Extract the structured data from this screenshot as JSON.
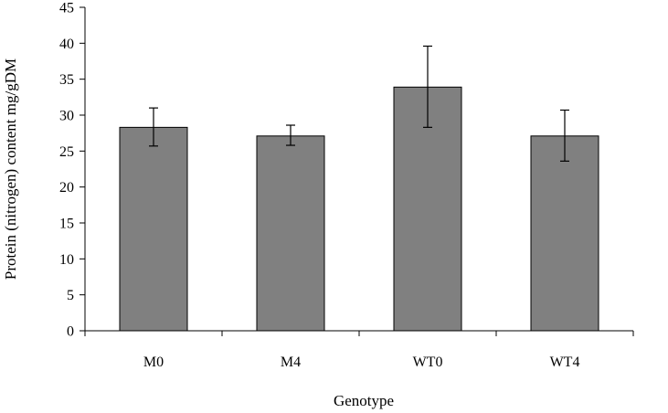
{
  "chart_data": {
    "type": "bar",
    "title": "",
    "xlabel": "Genotype",
    "ylabel": "Protein (nitrogen) content  mg/gDM",
    "categories": [
      "M0",
      "M4",
      "WT0",
      "WT4"
    ],
    "values": [
      28.3,
      27.1,
      33.9,
      27.1
    ],
    "error_low": [
      25.7,
      25.8,
      28.3,
      23.6
    ],
    "error_high": [
      31.0,
      28.6,
      39.6,
      30.7
    ],
    "ylim": [
      0,
      45
    ],
    "yticks": [
      0,
      5,
      10,
      15,
      20,
      25,
      30,
      35,
      40,
      45
    ],
    "grid": false,
    "legend": "none",
    "colors": {
      "bar": "#808080",
      "outline": "#000000"
    }
  }
}
